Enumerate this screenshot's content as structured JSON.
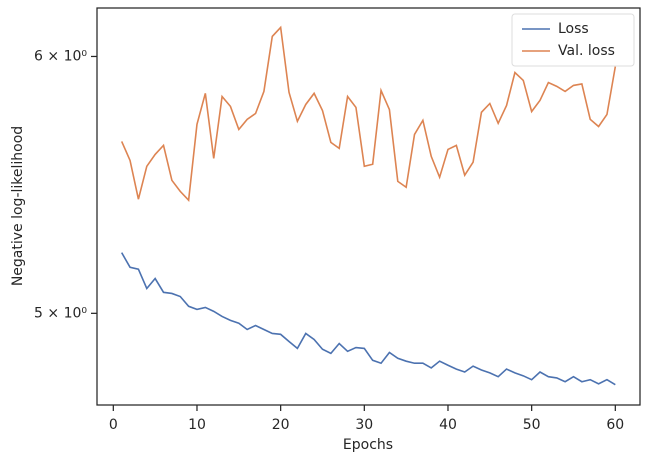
{
  "chart_data": {
    "type": "line",
    "xlabel": "Epochs",
    "ylabel": "Negative log-likelihood",
    "x": [
      1,
      2,
      3,
      4,
      5,
      6,
      7,
      8,
      9,
      10,
      11,
      12,
      13,
      14,
      15,
      16,
      17,
      18,
      19,
      20,
      21,
      22,
      23,
      24,
      25,
      26,
      27,
      28,
      29,
      30,
      31,
      32,
      33,
      34,
      35,
      36,
      37,
      38,
      39,
      40,
      41,
      42,
      43,
      44,
      45,
      46,
      47,
      48,
      49,
      50,
      51,
      52,
      53,
      54,
      55,
      56,
      57,
      58,
      59,
      60
    ],
    "series": [
      {
        "name": "Loss",
        "color": "#4c72b0",
        "values": [
          5.22,
          5.166,
          5.159,
          5.089,
          5.125,
          5.075,
          5.071,
          5.06,
          5.025,
          5.014,
          5.021,
          5.007,
          4.989,
          4.975,
          4.965,
          4.943,
          4.957,
          4.943,
          4.929,
          4.926,
          4.901,
          4.877,
          4.929,
          4.908,
          4.874,
          4.86,
          4.894,
          4.867,
          4.88,
          4.877,
          4.836,
          4.826,
          4.863,
          4.843,
          4.833,
          4.826,
          4.826,
          4.81,
          4.833,
          4.819,
          4.806,
          4.796,
          4.816,
          4.803,
          4.793,
          4.78,
          4.806,
          4.793,
          4.783,
          4.77,
          4.796,
          4.78,
          4.776,
          4.763,
          4.78,
          4.763,
          4.77,
          4.756,
          4.77,
          4.753
        ]
      },
      {
        "name": "Val. loss",
        "color": "#dd8452",
        "values": [
          5.649,
          5.573,
          5.422,
          5.55,
          5.597,
          5.633,
          5.495,
          5.452,
          5.418,
          5.718,
          5.845,
          5.581,
          5.832,
          5.791,
          5.697,
          5.738,
          5.762,
          5.853,
          6.086,
          6.125,
          5.849,
          5.73,
          5.799,
          5.845,
          5.774,
          5.645,
          5.621,
          5.832,
          5.787,
          5.55,
          5.558,
          5.857,
          5.778,
          5.491,
          5.468,
          5.677,
          5.734,
          5.589,
          5.507,
          5.617,
          5.633,
          5.515,
          5.566,
          5.767,
          5.803,
          5.722,
          5.795,
          5.932,
          5.899,
          5.77,
          5.816,
          5.89,
          5.874,
          5.853,
          5.878,
          5.884,
          5.738,
          5.709,
          5.758,
          5.957
        ]
      }
    ],
    "xlim": [
      -1.95,
      62.95
    ],
    "xticks": [
      0,
      10,
      20,
      30,
      40,
      50,
      60
    ],
    "ylim": [
      4.685,
      6.21
    ],
    "yscale": "log",
    "yticks": [
      {
        "value": 5,
        "label": "5 × 10⁰"
      },
      {
        "value": 6,
        "label": "6 × 10⁰"
      }
    ],
    "legend": "upper right"
  }
}
